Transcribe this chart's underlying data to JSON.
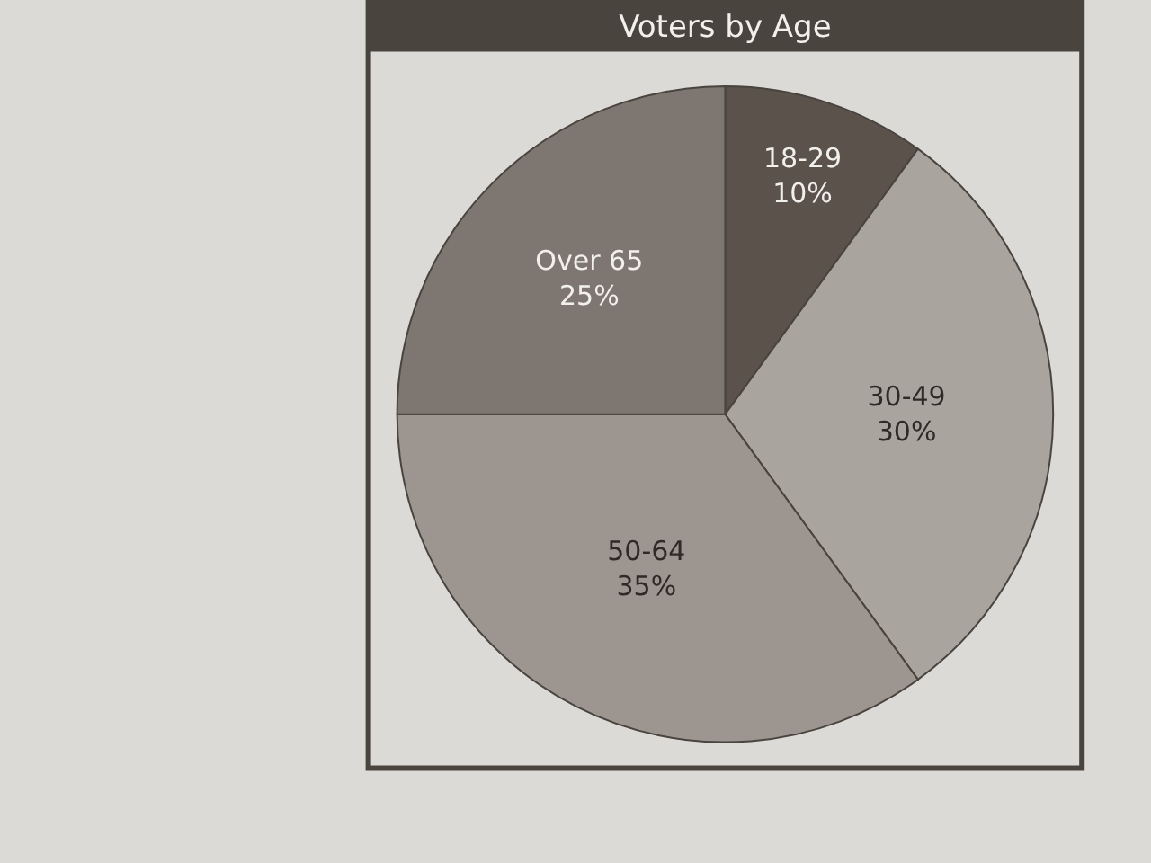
{
  "chart_data": {
    "type": "pie",
    "title": "Voters by Age",
    "categories": [
      "18-29",
      "30-49",
      "50-64",
      "Over 65"
    ],
    "values": [
      10,
      30,
      35,
      25
    ],
    "value_labels": [
      "10%",
      "30%",
      "35%",
      "25%"
    ],
    "colors": [
      "#5a524b",
      "#aaa49e",
      "#9d9690",
      "#7e7670"
    ],
    "legend": false
  }
}
